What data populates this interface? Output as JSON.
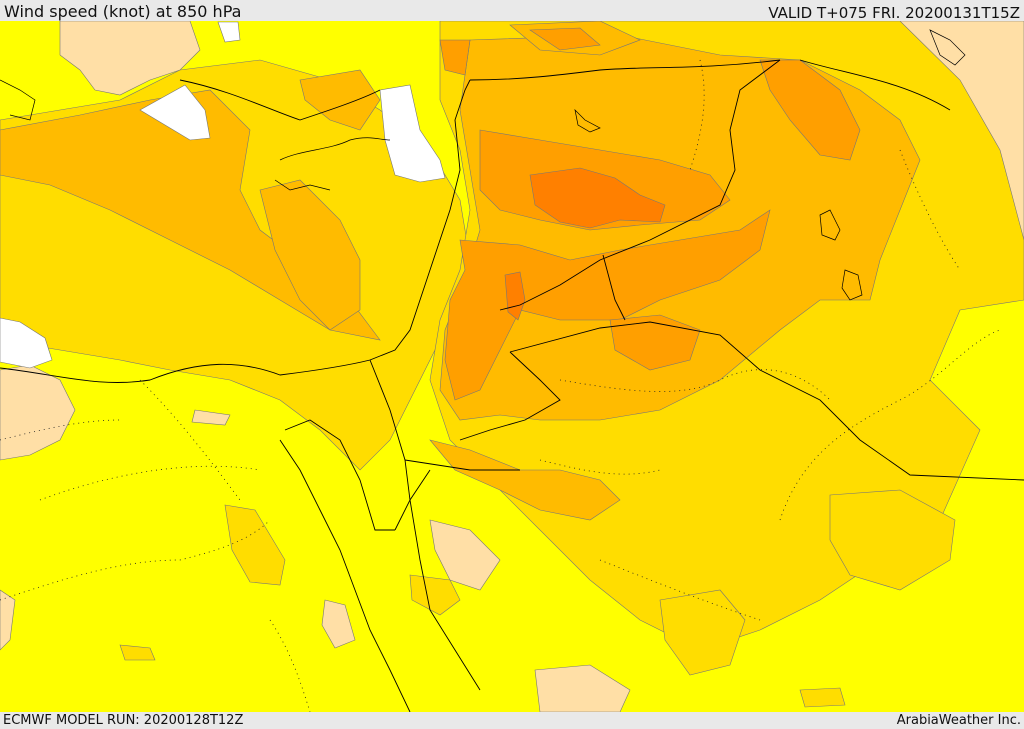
{
  "header": {
    "title": "Wind speed (knot) at 850 hPa",
    "valid_time": "VALID T+075 FRI. 20200131T15Z"
  },
  "footer": {
    "model_run": "ECMWF MODEL RUN: 20200128T12Z",
    "credit": "ArabiaWeather Inc."
  },
  "colors": {
    "band_lowest": "#ffffff",
    "band_1": "#ffff00",
    "band_2": "#ffdd00",
    "band_3": "#ffbb00",
    "band_4": "#ff9f00",
    "band_5": "#ff8000",
    "land_peach": "#ffdfa6",
    "contour_line": "#555555",
    "border_line": "#000000",
    "header_bg": "#e9e9e9"
  }
}
